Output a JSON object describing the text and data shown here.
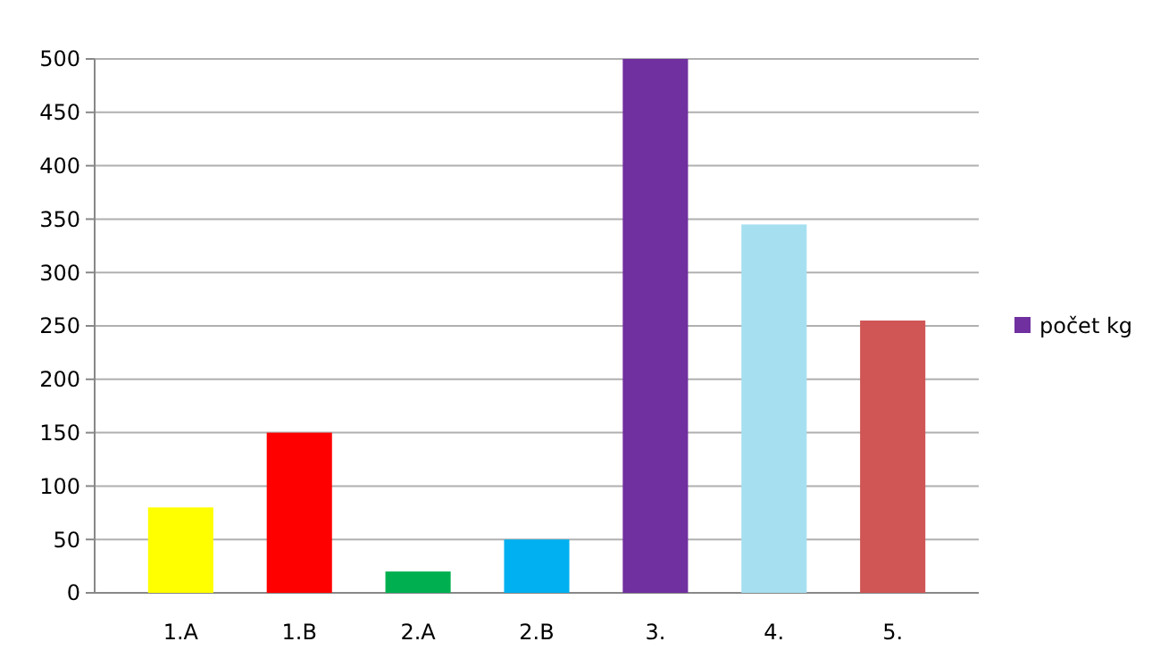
{
  "chart_data": {
    "type": "bar",
    "categories": [
      "1.A",
      "1.B",
      "2.A",
      "2.B",
      "3.",
      "4.",
      "5."
    ],
    "series": [
      {
        "name": "počet kg",
        "color": "#7030a0",
        "colors": [
          "#ffff00",
          "#ff0000",
          "#00b050",
          "#00b0f0",
          "#7030a0",
          "#a6e0f0",
          "#d05555"
        ],
        "values": [
          80,
          150,
          20,
          50,
          500,
          345,
          255
        ]
      }
    ],
    "ylim": [
      0,
      500
    ],
    "yticks": [
      0,
      50,
      100,
      150,
      200,
      250,
      300,
      350,
      400,
      450,
      500
    ],
    "grid": "y",
    "legend": "right"
  }
}
